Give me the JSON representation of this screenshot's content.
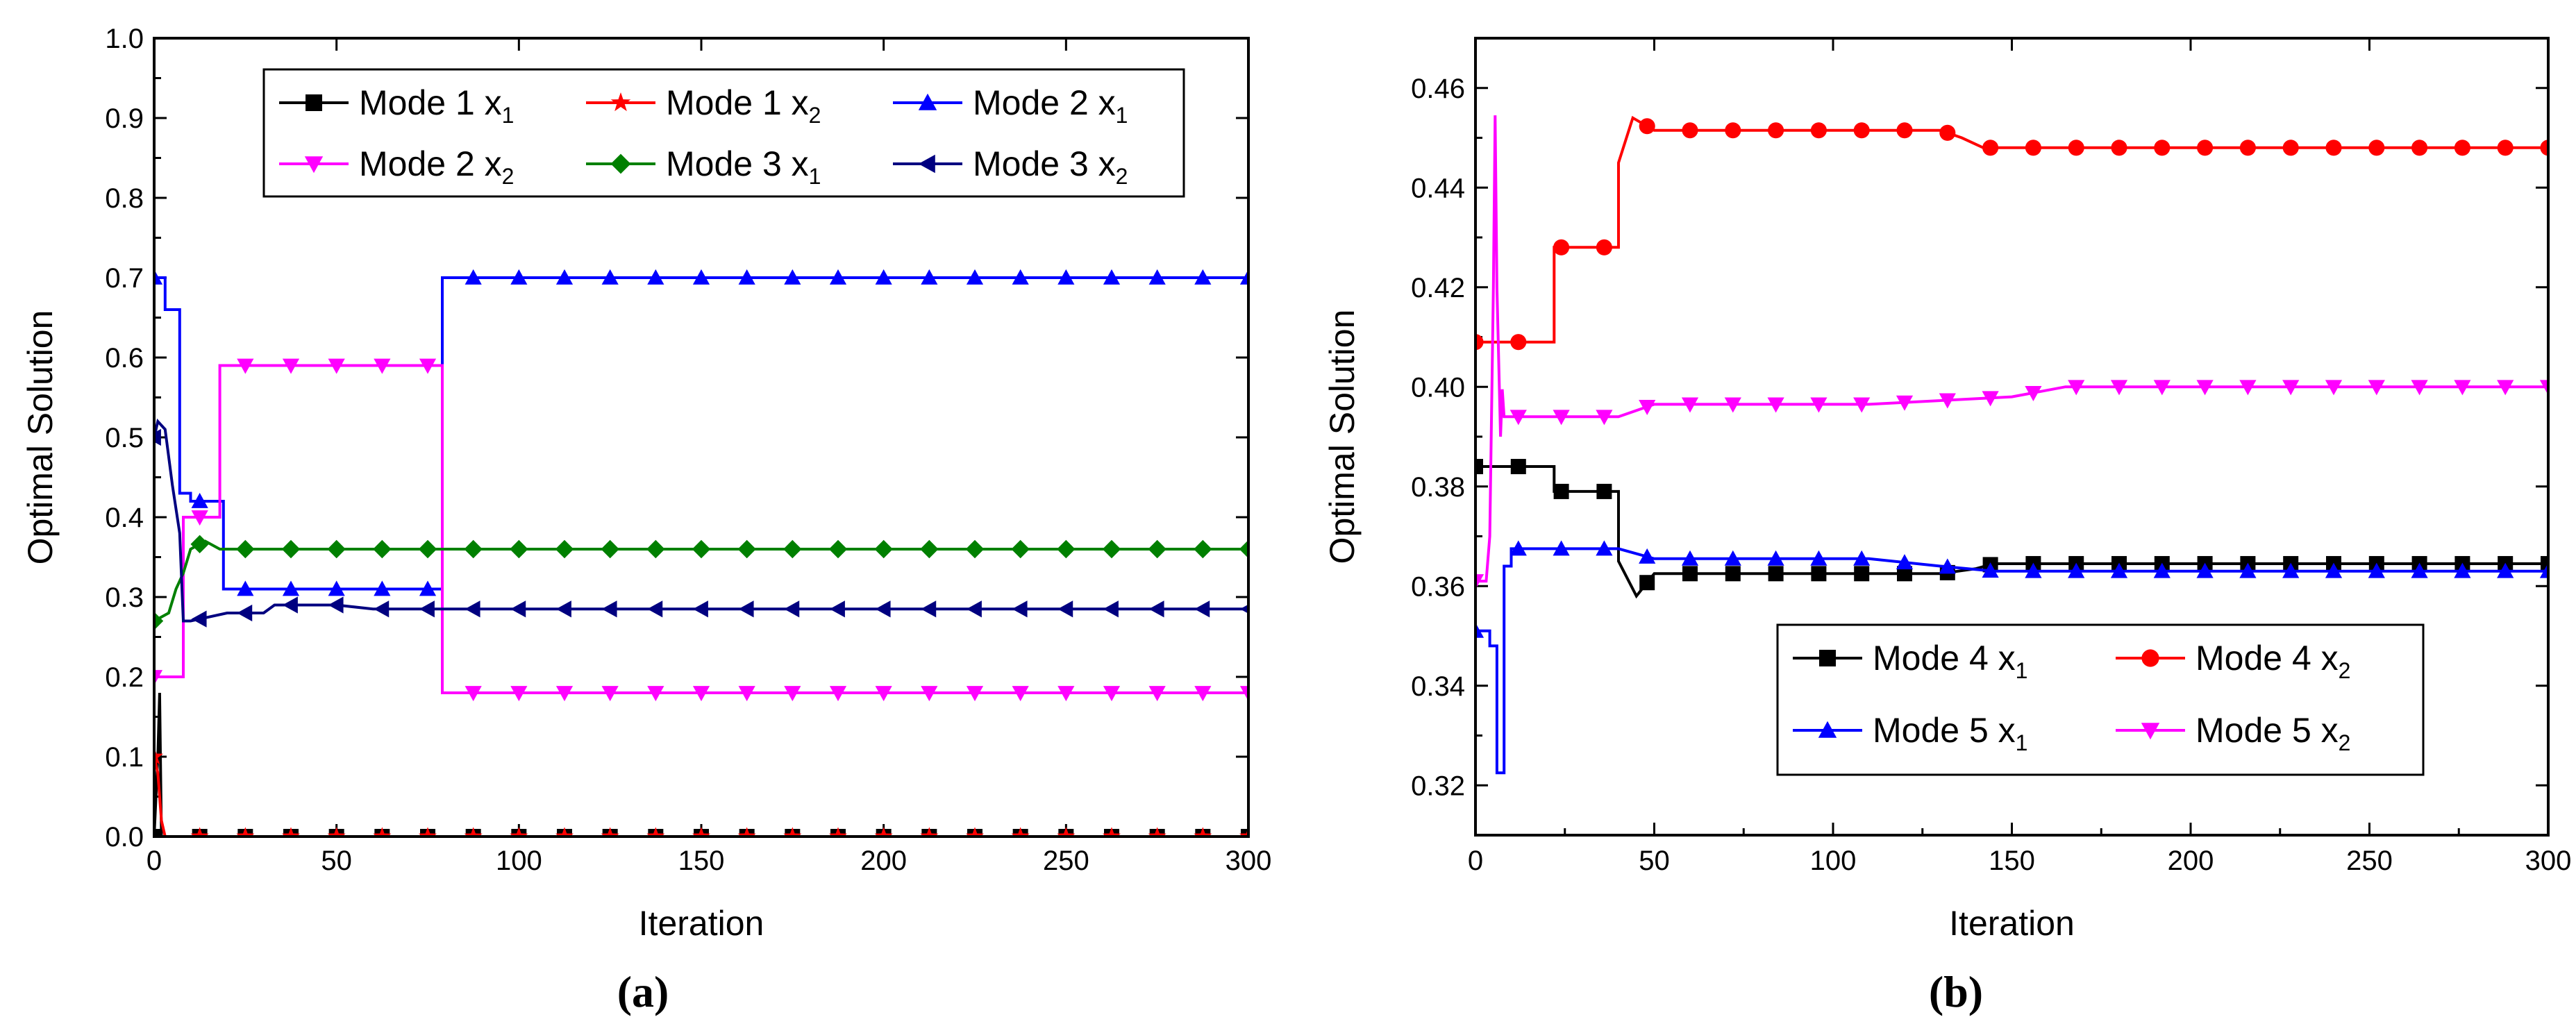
{
  "chart_data": [
    {
      "type": "line",
      "caption": "(a)",
      "xlabel": "Iteration",
      "ylabel": "Optimal Solution",
      "xlim": [
        0,
        300
      ],
      "ylim": [
        0,
        1.0
      ],
      "xticks": [
        "0",
        "50",
        "100",
        "150",
        "200",
        "250",
        "300"
      ],
      "yticks": [
        "0.0",
        "0.1",
        "0.2",
        "0.3",
        "0.4",
        "0.5",
        "0.6",
        "0.7",
        "0.8",
        "0.9",
        "1.0"
      ],
      "legend_position": "top",
      "series": [
        {
          "name": "Mode 1 x",
          "subscript": "1",
          "color": "#000000",
          "marker": "square",
          "x": [
            0,
            1,
            1.5,
            2,
            300
          ],
          "y": [
            0,
            0.1,
            0.18,
            0,
            0
          ]
        },
        {
          "name": "Mode 1 x",
          "subscript": "2",
          "color": "#ff0000",
          "marker": "star",
          "x": [
            0,
            1,
            2,
            3,
            300
          ],
          "y": [
            0.1,
            0.08,
            0.02,
            0,
            0
          ]
        },
        {
          "name": "Mode 2 x",
          "subscript": "1",
          "color": "#0000ff",
          "marker": "triangle-up",
          "x": [
            0,
            3,
            3,
            7,
            7,
            10,
            10,
            19,
            19,
            79,
            79,
            300
          ],
          "y": [
            0.7,
            0.7,
            0.66,
            0.66,
            0.43,
            0.43,
            0.42,
            0.42,
            0.31,
            0.31,
            0.7,
            0.7
          ]
        },
        {
          "name": "Mode 2 x",
          "subscript": "2",
          "color": "#ff00ff",
          "marker": "triangle-down",
          "x": [
            0,
            8,
            8,
            18,
            18,
            79,
            79,
            300
          ],
          "y": [
            0.2,
            0.2,
            0.4,
            0.4,
            0.59,
            0.59,
            0.18,
            0.18
          ]
        },
        {
          "name": "Mode 3 x",
          "subscript": "1",
          "color": "#008000",
          "marker": "diamond",
          "x": [
            0,
            4,
            6,
            8,
            10,
            14,
            18,
            300
          ],
          "y": [
            0.27,
            0.28,
            0.31,
            0.33,
            0.36,
            0.37,
            0.36,
            0.36
          ]
        },
        {
          "name": "Mode 3 x",
          "subscript": "2",
          "color": "#000080",
          "marker": "triangle-left",
          "x": [
            0,
            1,
            3,
            5,
            7,
            8,
            10,
            20,
            30,
            33,
            50,
            60,
            300
          ],
          "y": [
            0.5,
            0.52,
            0.51,
            0.44,
            0.38,
            0.27,
            0.27,
            0.28,
            0.28,
            0.29,
            0.29,
            0.285,
            0.285
          ]
        }
      ]
    },
    {
      "type": "line",
      "caption": "(b)",
      "xlabel": "Iteration",
      "ylabel": "Optimal Solution",
      "xlim": [
        0,
        300
      ],
      "ylim": [
        0.31,
        0.47
      ],
      "xticks": [
        "0",
        "50",
        "100",
        "150",
        "200",
        "250",
        "300"
      ],
      "yticks": [
        "0.32",
        "0.34",
        "0.36",
        "0.38",
        "0.40",
        "0.42",
        "0.44",
        "0.46"
      ],
      "legend_position": "bottom-right",
      "series": [
        {
          "name": "Mode 4 x",
          "subscript": "1",
          "color": "#000000",
          "marker": "square",
          "x": [
            0,
            22,
            22,
            40,
            40,
            45,
            45,
            50,
            50,
            130,
            140,
            145,
            300
          ],
          "y": [
            0.384,
            0.384,
            0.379,
            0.379,
            0.365,
            0.358,
            0.358,
            0.3625,
            0.3625,
            0.3625,
            0.3635,
            0.3645,
            0.3645
          ]
        },
        {
          "name": "Mode 4 x",
          "subscript": "2",
          "color": "#ff0000",
          "marker": "circle",
          "x": [
            0,
            22,
            22,
            40,
            40,
            44,
            44,
            50,
            50,
            130,
            136,
            142,
            300
          ],
          "y": [
            0.409,
            0.409,
            0.428,
            0.428,
            0.445,
            0.454,
            0.454,
            0.4515,
            0.4515,
            0.4515,
            0.45,
            0.448,
            0.448
          ]
        },
        {
          "name": "Mode 5 x",
          "subscript": "1",
          "color": "#0000ff",
          "marker": "triangle-up",
          "x": [
            0,
            4,
            4,
            6,
            6,
            8,
            8,
            10,
            10,
            40,
            45,
            50,
            110,
            130,
            145,
            300
          ],
          "y": [
            0.351,
            0.351,
            0.348,
            0.348,
            0.3225,
            0.3225,
            0.364,
            0.364,
            0.3675,
            0.3675,
            0.3665,
            0.3655,
            0.3655,
            0.364,
            0.363,
            0.363
          ]
        },
        {
          "name": "Mode 5 x",
          "subscript": "2",
          "color": "#ff00ff",
          "marker": "triangle-down",
          "x": [
            0,
            3,
            4,
            5,
            5.5,
            6,
            7,
            7.5,
            8,
            9,
            40,
            50,
            110,
            150,
            165,
            300
          ],
          "y": [
            0.361,
            0.361,
            0.37,
            0.42,
            0.4545,
            0.42,
            0.39,
            0.3995,
            0.394,
            0.394,
            0.394,
            0.3965,
            0.3965,
            0.398,
            0.4,
            0.4
          ]
        }
      ]
    }
  ]
}
